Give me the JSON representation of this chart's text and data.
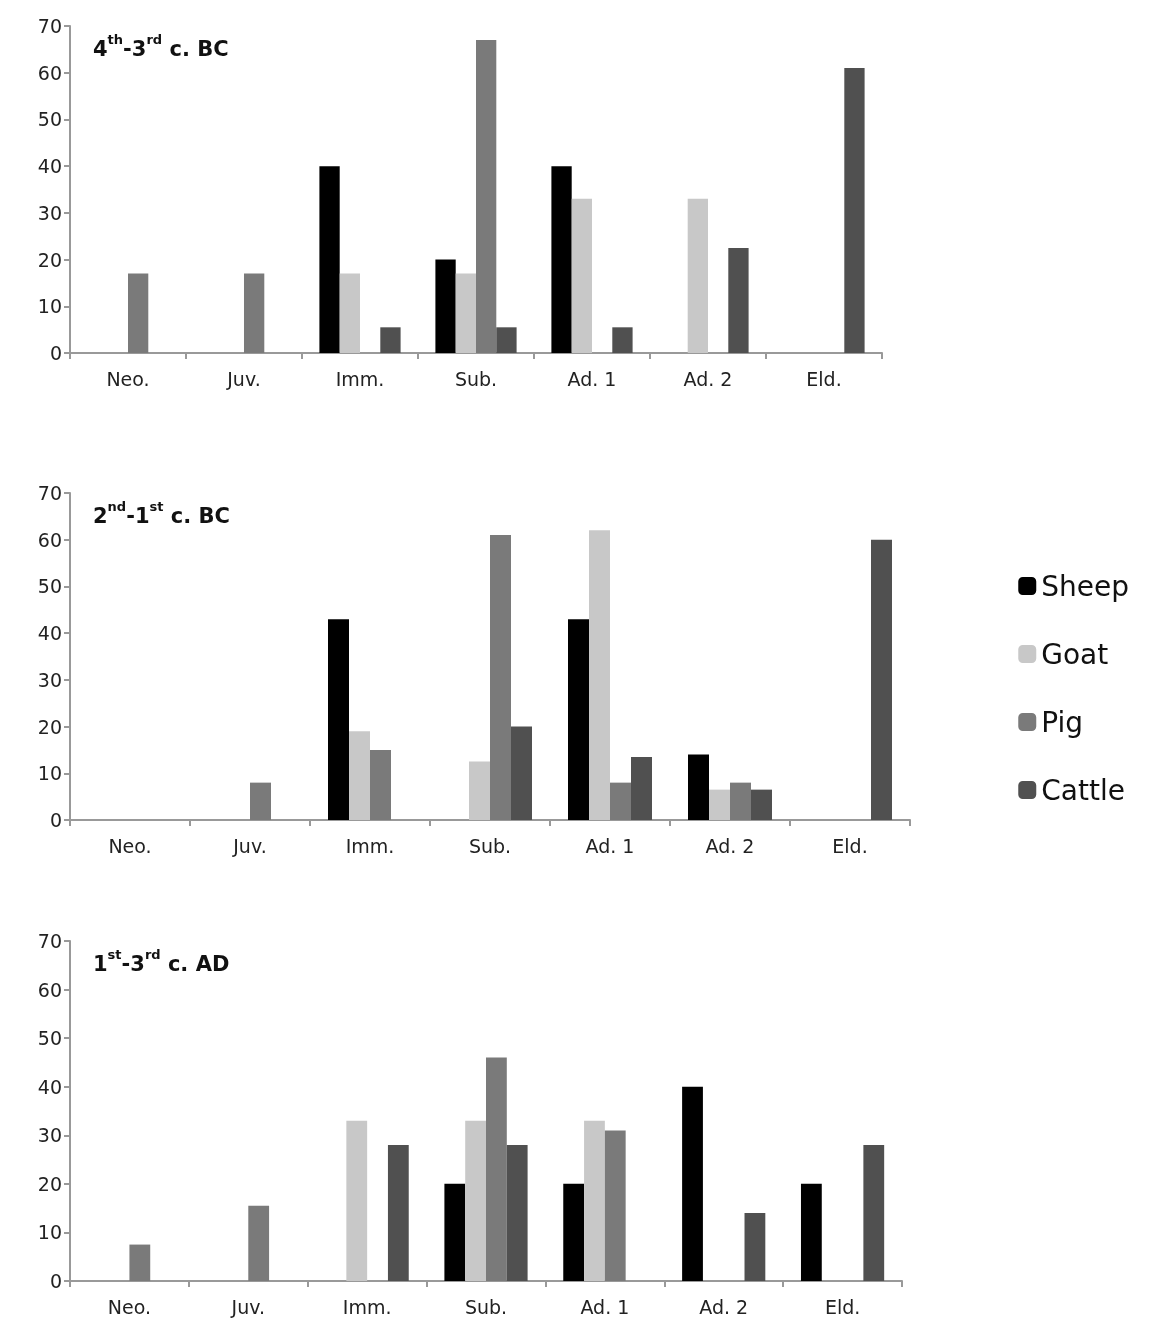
{
  "chart_data": [
    {
      "type": "bar",
      "title": "4$^{th}$-3$^{rd}$ c. BC",
      "categories": [
        "Neo.",
        "Juv.",
        "Imm.",
        "Sub.",
        "Ad. 1",
        "Ad. 2",
        "Eld."
      ],
      "series": [
        {
          "color": "#000000",
          "values": [
            0,
            0,
            40,
            20,
            40,
            0,
            0
          ]
        },
        {
          "color": "#c8c8c8",
          "values": [
            0,
            0,
            17,
            17,
            33,
            33,
            0
          ]
        },
        {
          "color": "#7a7a7a",
          "values": [
            17,
            17,
            0,
            67,
            0,
            0,
            0
          ]
        },
        {
          "color": "#505050",
          "values": [
            0,
            0,
            5.5,
            5.5,
            5.5,
            22.5,
            61
          ]
        }
      ],
      "ylim": [
        0,
        70
      ],
      "yticks": [
        0,
        10,
        20,
        30,
        40,
        50,
        60,
        70
      ],
      "grid": false,
      "legend": false
    },
    {
      "type": "bar",
      "title": "2$^{nd}$-1$^{st}$ c. BC",
      "categories": [
        "Neo.",
        "Juv.",
        "Imm.",
        "Sub.",
        "Ad. 1",
        "Ad. 2",
        "Eld."
      ],
      "series": [
        {
          "name": "Sheep",
          "color": "#000000",
          "values": [
            0,
            0,
            43,
            0,
            43,
            14,
            0
          ]
        },
        {
          "name": "Goat",
          "color": "#c8c8c8",
          "values": [
            0,
            0,
            19,
            12.5,
            62,
            6.5,
            0
          ]
        },
        {
          "name": "Pig",
          "color": "#7a7a7a",
          "values": [
            0,
            8,
            15,
            61,
            8,
            8,
            0
          ]
        },
        {
          "name": "Cattle",
          "color": "#505050",
          "values": [
            0,
            0,
            0,
            20,
            13.5,
            6.5,
            60
          ]
        }
      ],
      "ylim": [
        0,
        70
      ],
      "yticks": [
        0,
        10,
        20,
        30,
        40,
        50,
        60,
        70
      ],
      "grid": false,
      "legend": "right"
    },
    {
      "type": "bar",
      "title": "1$^{st}$-3$^{rd}$ c. AD",
      "categories": [
        "Neo.",
        "Juv.",
        "Imm.",
        "Sub.",
        "Ad. 1",
        "Ad. 2",
        "Eld."
      ],
      "series": [
        {
          "color": "#000000",
          "values": [
            0,
            0,
            0,
            20,
            20,
            40,
            20
          ]
        },
        {
          "color": "#c8c8c8",
          "values": [
            0,
            0,
            33,
            33,
            33,
            0,
            0
          ]
        },
        {
          "color": "#7a7a7a",
          "values": [
            7.5,
            15.5,
            0,
            46,
            31,
            0,
            0
          ]
        },
        {
          "color": "#505050",
          "values": [
            0,
            0,
            28,
            28,
            0,
            14,
            28
          ]
        }
      ],
      "ylim": [
        0,
        70
      ],
      "yticks": [
        0,
        10,
        20,
        30,
        40,
        50,
        60,
        70
      ],
      "grid": false,
      "legend": false
    }
  ]
}
